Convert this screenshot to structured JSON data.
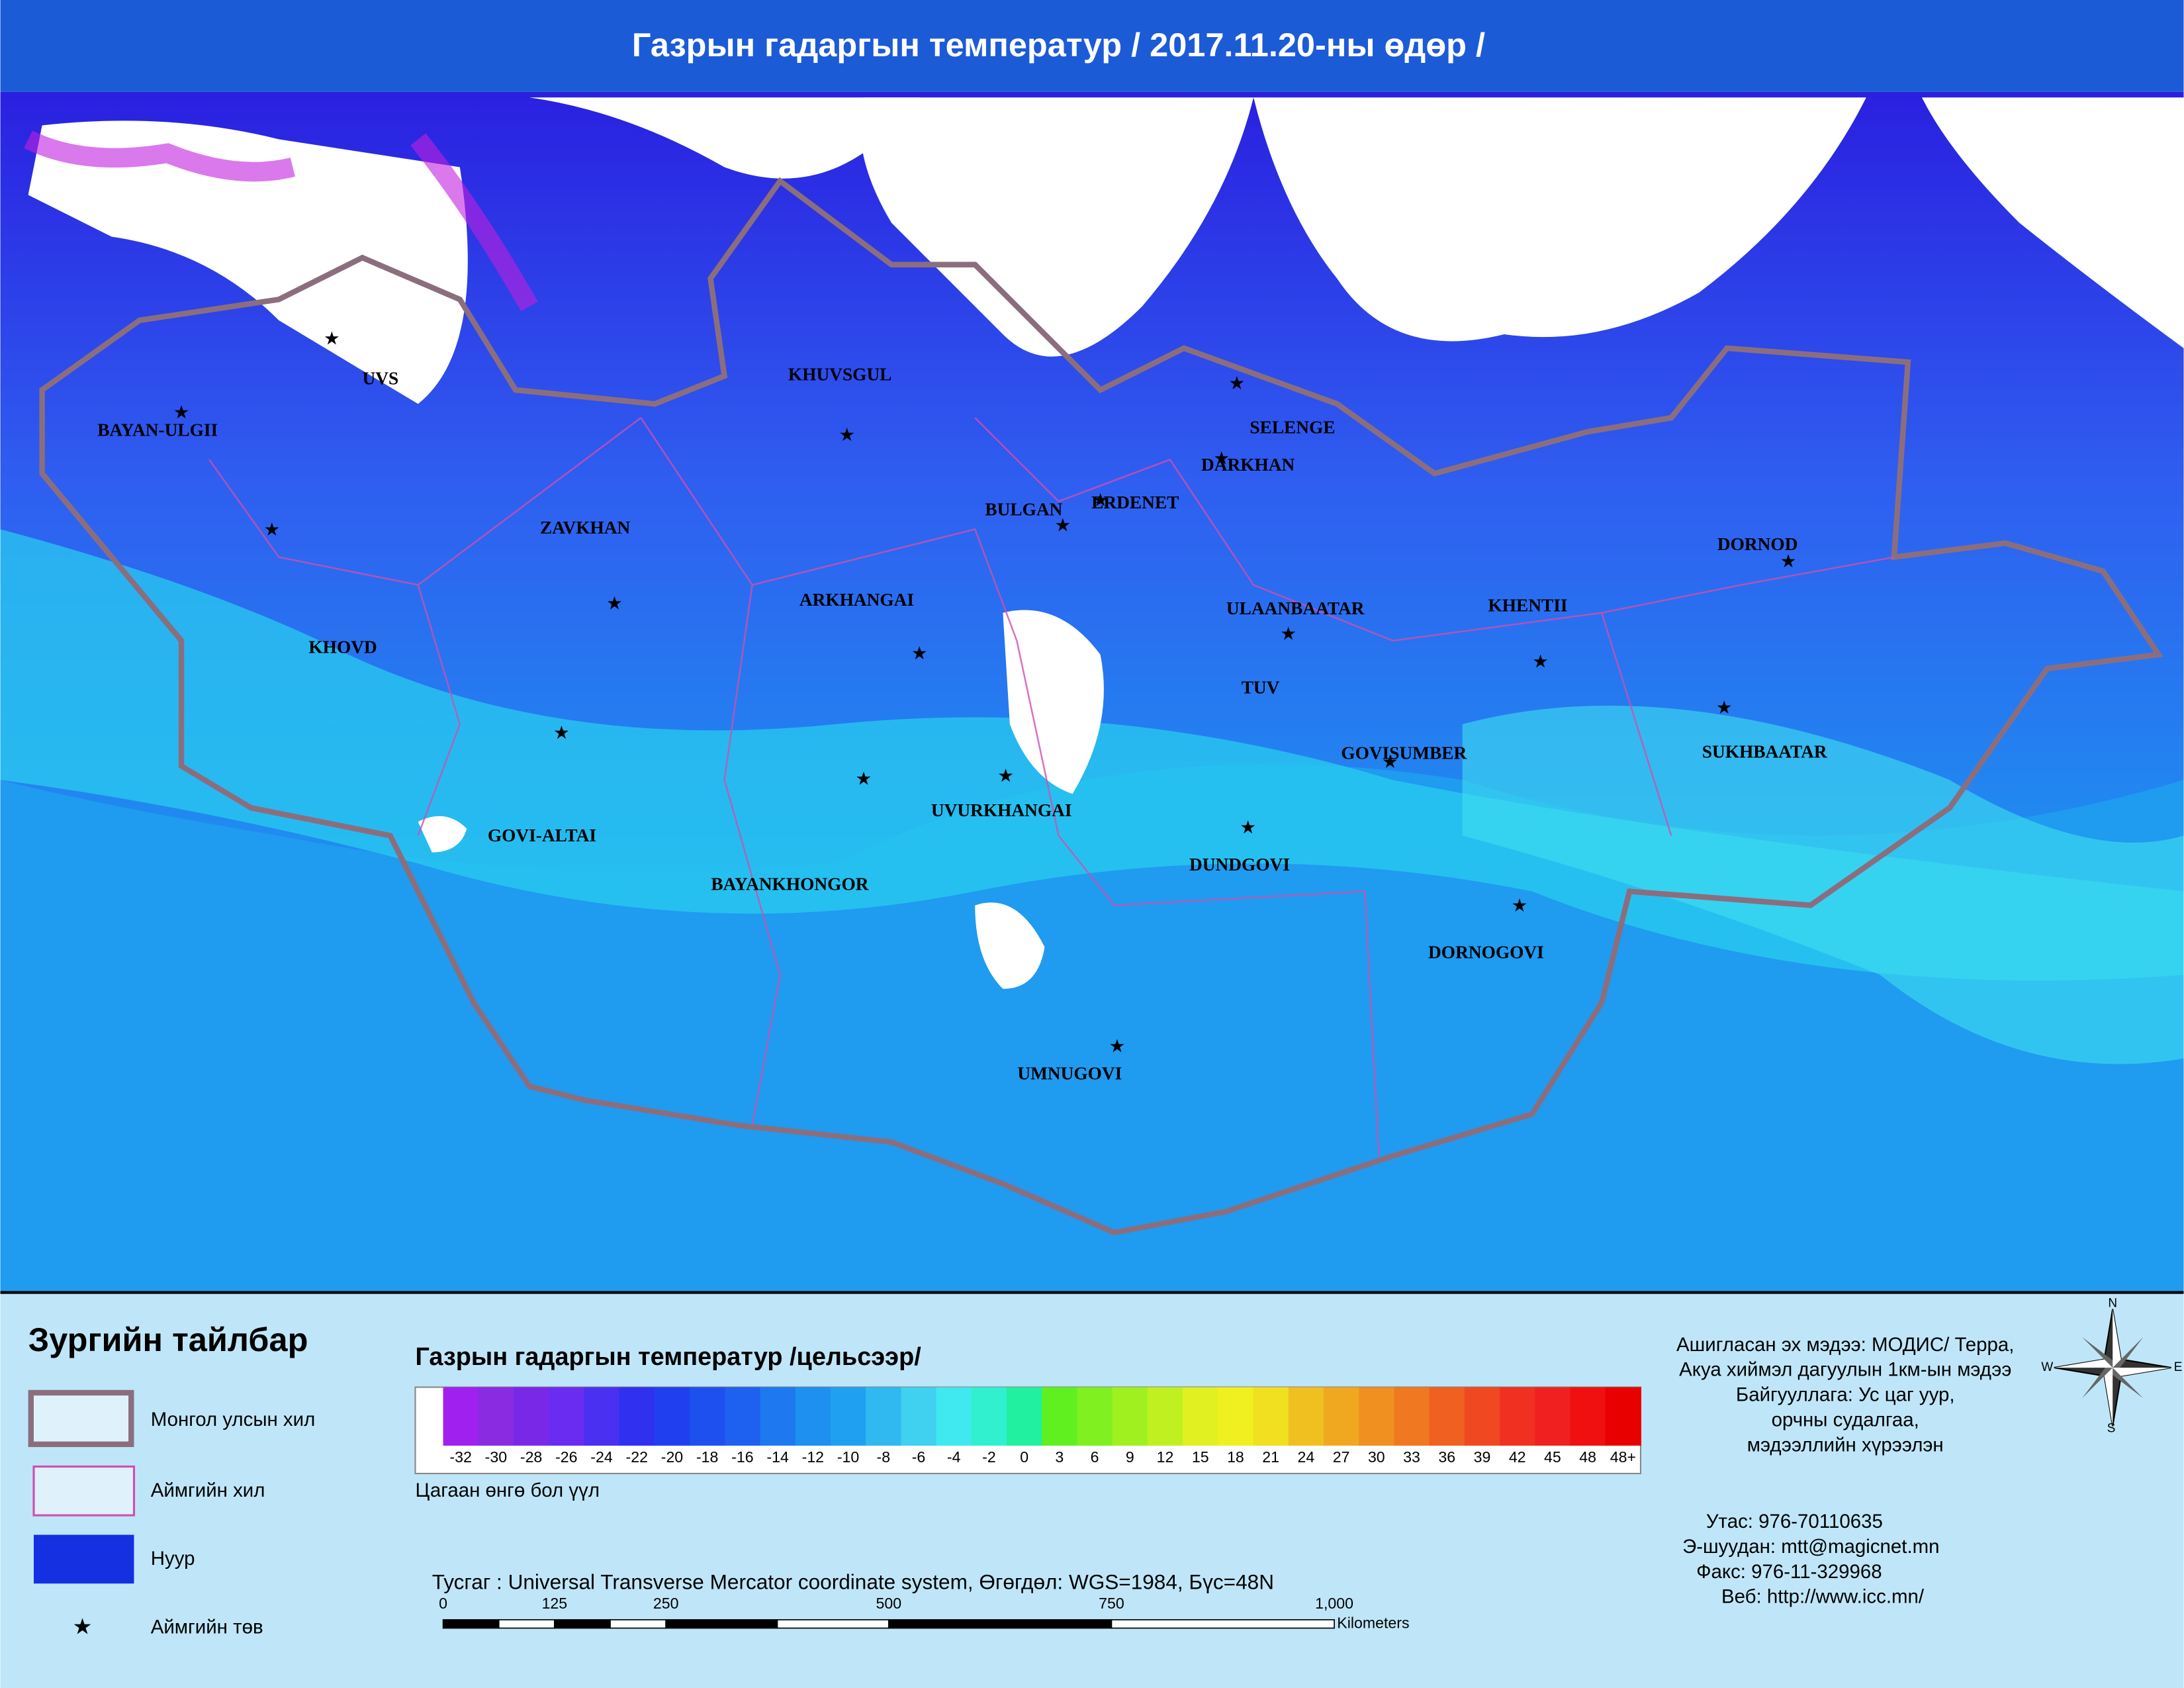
{
  "header": {
    "title": "Газрын гадаргын температур / 2017.11.20-ны өдөр /"
  },
  "map": {
    "provinces": [
      "BAYAN-ULGII",
      "UVS",
      "KHUVSGUL",
      "SELENGE",
      "DARKHAN",
      "BULGAN",
      "ERDENET",
      "ZAVKHAN",
      "DORNOD",
      "ARKHANGAI",
      "ULAANBAATAR",
      "KHENTII",
      "KHOVD",
      "TUV",
      "GOVISUMBER",
      "SUKHBAATAR",
      "GOVI-ALTAI",
      "UVURKHANGAI",
      "DUNDGOVI",
      "BAYANKHONGOR",
      "DORNOGOVI",
      "UMNUGOVI"
    ]
  },
  "legend": {
    "title": "Зургийн тайлбар",
    "items": [
      "Монгол улсын хил",
      "Аймгийн хил",
      "Нуур",
      "Аймгийн төв"
    ]
  },
  "colorbar": {
    "title": "Газрын гадаргын температур /цельсээр/",
    "labels": [
      "-32",
      "-30",
      "-28",
      "-26",
      "-24",
      "-22",
      "-20",
      "-18",
      "-16",
      "-14",
      "-12",
      "-10",
      "-8",
      "-6",
      "-4",
      "-2",
      "0",
      "3",
      "6",
      "9",
      "12",
      "15",
      "18",
      "21",
      "24",
      "27",
      "30",
      "33",
      "36",
      "39",
      "42",
      "45",
      "48",
      "48+"
    ],
    "colors": [
      "#a020f0",
      "#8a2be2",
      "#7a28e8",
      "#6a2cf0",
      "#4a30f0",
      "#3030f0",
      "#2040f0",
      "#1e50f0",
      "#1e60f0",
      "#1e78f0",
      "#1e90f0",
      "#20a0f0",
      "#30b8f0",
      "#40d0f0",
      "#40e8f0",
      "#30f0d0",
      "#20f0a0",
      "#60f020",
      "#80f020",
      "#a0f020",
      "#c0f020",
      "#e0f020",
      "#f0f020",
      "#f0e020",
      "#f0c020",
      "#f0a820",
      "#f09020",
      "#f07820",
      "#f06020",
      "#f04820",
      "#f03020",
      "#f02020",
      "#f01010",
      "#e80000"
    ],
    "note": "Цагаан өнгө бол үүл"
  },
  "projection": "Тусгаг : Universal Transverse Mercator coordinate system, Өгөгдөл: WGS=1984, Бүс=48N",
  "scale": {
    "labels": [
      "0",
      "125",
      "250",
      "500",
      "750",
      "1,000"
    ],
    "unit": "Kilometers"
  },
  "compass": [
    "N",
    "E",
    "S",
    "W"
  ],
  "source": [
    "Ашигласан эх мэдээ: МОДИС/ Терра,",
    "Акуа хиймэл дагуулын 1км-ын мэдээ",
    "Байгууллага: Ус цаг уур,",
    "орчны судалгаа,",
    "мэдээллийн хүрээлэн"
  ],
  "contacts": [
    "Утас:   976-70110635",
    "Э-шуудан:      mtt@magicnet.mn",
    "Факс:  976-11-329968",
    "Веб:       http://www.icc.mn/"
  ]
}
